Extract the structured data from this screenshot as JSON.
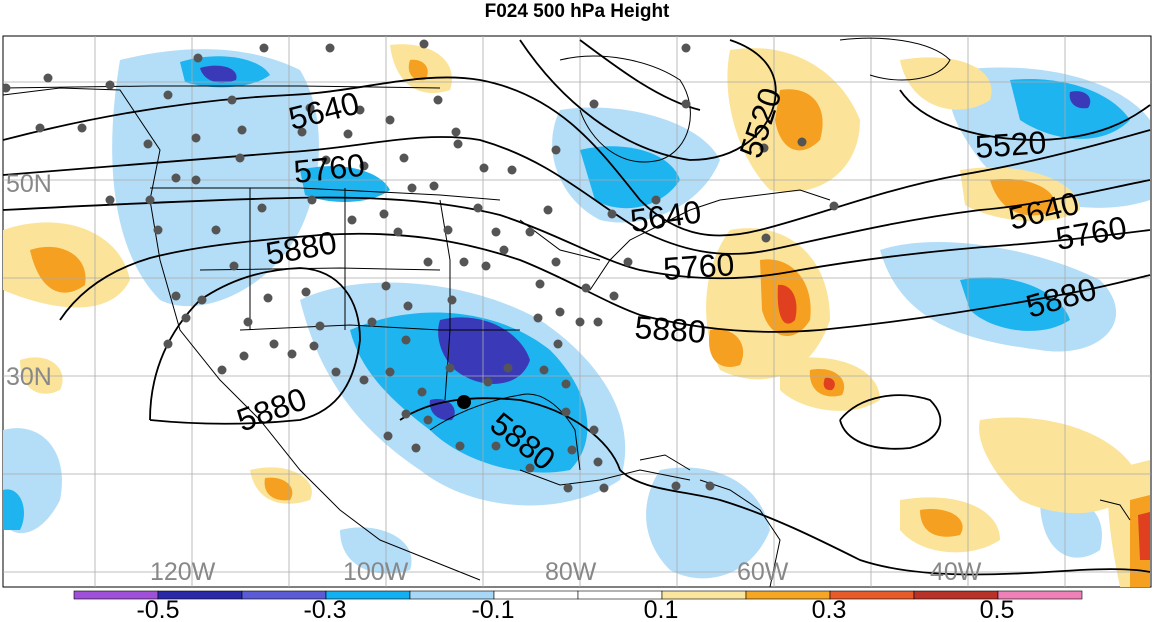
{
  "title": "F024 500 hPa Height",
  "lat_labels": [
    "50N",
    "30N"
  ],
  "lon_labels": [
    "120W",
    "100W",
    "80W",
    "60W",
    "40W"
  ],
  "contour_labels": [
    {
      "text": "5640"
    },
    {
      "text": "5760"
    },
    {
      "text": "5880"
    },
    {
      "text": "5880"
    },
    {
      "text": "5880"
    },
    {
      "text": "5640"
    },
    {
      "text": "5760"
    },
    {
      "text": "5880"
    },
    {
      "text": "5520"
    },
    {
      "text": "5520"
    },
    {
      "text": "5640"
    },
    {
      "text": "5760"
    },
    {
      "text": "5880"
    }
  ],
  "colorbar": {
    "tick_labels": [
      "-0.5",
      "-0.3",
      "-0.1",
      "0.1",
      "0.3",
      "0.5"
    ],
    "colors": [
      "#a050d8",
      "#2a2aa8",
      "#5b5bd6",
      "#11b0f0",
      "#a8d8f8",
      "#ffffff",
      "#ffffff",
      "#fbe6a0",
      "#f5a623",
      "#e85a28",
      "#b83228",
      "#f080b8"
    ]
  },
  "colors": {
    "blue_dark": "#3a3ab8",
    "blue": "#1eb4f0",
    "blue_light": "#b4def8",
    "yellow": "#fbe49a",
    "orange": "#f5a020",
    "red": "#e04020",
    "station": "#555555"
  }
}
